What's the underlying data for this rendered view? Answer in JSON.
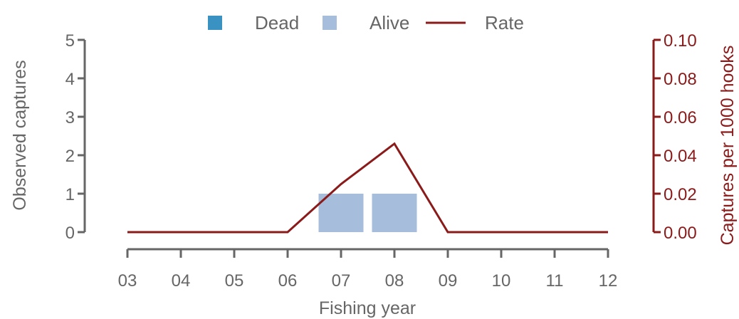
{
  "chart_data": {
    "type": "bar",
    "categories": [
      "03",
      "04",
      "05",
      "06",
      "07",
      "08",
      "09",
      "10",
      "11",
      "12"
    ],
    "series": [
      {
        "name": "Dead",
        "type": "bar",
        "values": [
          0,
          0,
          0,
          0,
          0,
          0,
          0,
          0,
          0,
          0
        ],
        "color": "#3a92c2"
      },
      {
        "name": "Alive",
        "type": "bar",
        "values": [
          0,
          0,
          0,
          0,
          1,
          1,
          0,
          0,
          0,
          0
        ],
        "color": "#a6bddb"
      },
      {
        "name": "Rate",
        "type": "line",
        "axis": "right",
        "values": [
          0,
          0,
          0,
          0,
          0.025,
          0.046,
          0,
          0,
          0,
          0
        ],
        "color": "#8b1a1a"
      }
    ],
    "xlabel": "Fishing year",
    "ylabel": "Observed captures",
    "y2label": "Captures per 1000 hooks",
    "ylim": [
      0,
      5
    ],
    "y2lim": [
      0,
      0.1
    ],
    "yticks": [
      "0",
      "1",
      "2",
      "3",
      "4",
      "5"
    ],
    "y2ticks": [
      "0.00",
      "0.02",
      "0.04",
      "0.06",
      "0.08",
      "0.10"
    ],
    "legend_position": "top-center",
    "grid": false,
    "axis_color": "#666666"
  }
}
